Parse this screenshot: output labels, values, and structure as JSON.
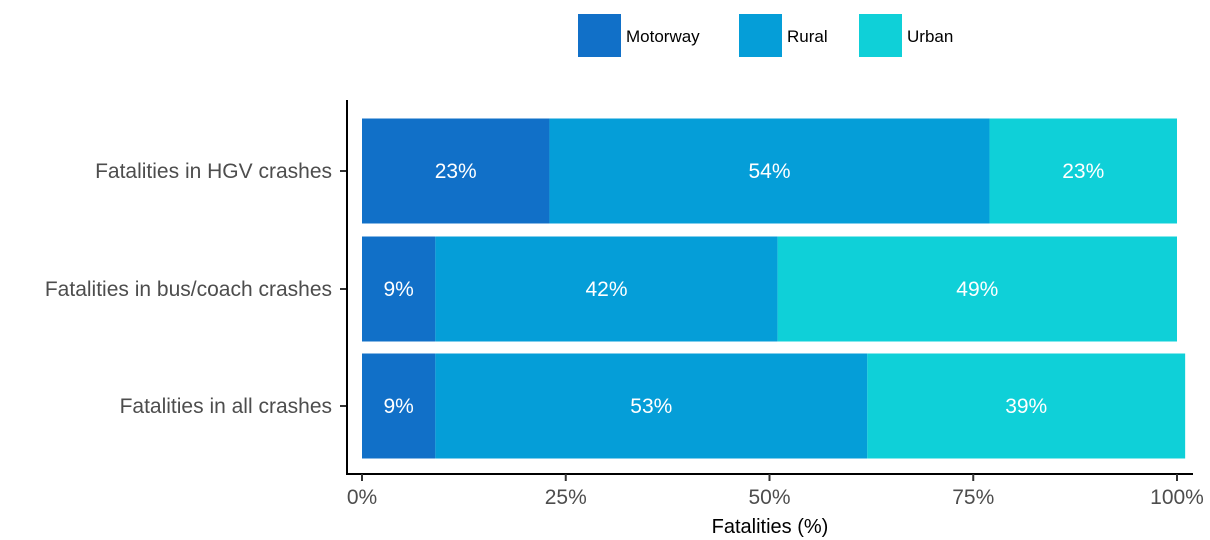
{
  "chart_data": {
    "type": "bar",
    "orientation": "horizontal",
    "stacked": "percent",
    "categories": [
      "Fatalities in HGV crashes",
      "Fatalities in bus/coach crashes",
      "Fatalities in all crashes"
    ],
    "series": [
      {
        "name": "Motorway",
        "color": "#1170c8",
        "values": [
          23,
          9,
          9
        ],
        "labels": [
          "23%",
          "9%",
          "9%"
        ]
      },
      {
        "name": "Rural",
        "color": "#059ed8",
        "values": [
          54,
          42,
          53
        ],
        "labels": [
          "54%",
          "42%",
          "53%"
        ]
      },
      {
        "name": "Urban",
        "color": "#0fd0d8",
        "values": [
          23,
          49,
          39
        ],
        "labels": [
          "23%",
          "49%",
          "39%"
        ]
      }
    ],
    "xlabel": "Fatalities (%)",
    "ylabel": "",
    "xlim": [
      0,
      100
    ],
    "xticks": [
      0,
      25,
      50,
      75,
      100
    ],
    "xtick_labels": [
      "0%",
      "25%",
      "50%",
      "75%",
      "100%"
    ],
    "legend_position": "top",
    "grid": false
  }
}
